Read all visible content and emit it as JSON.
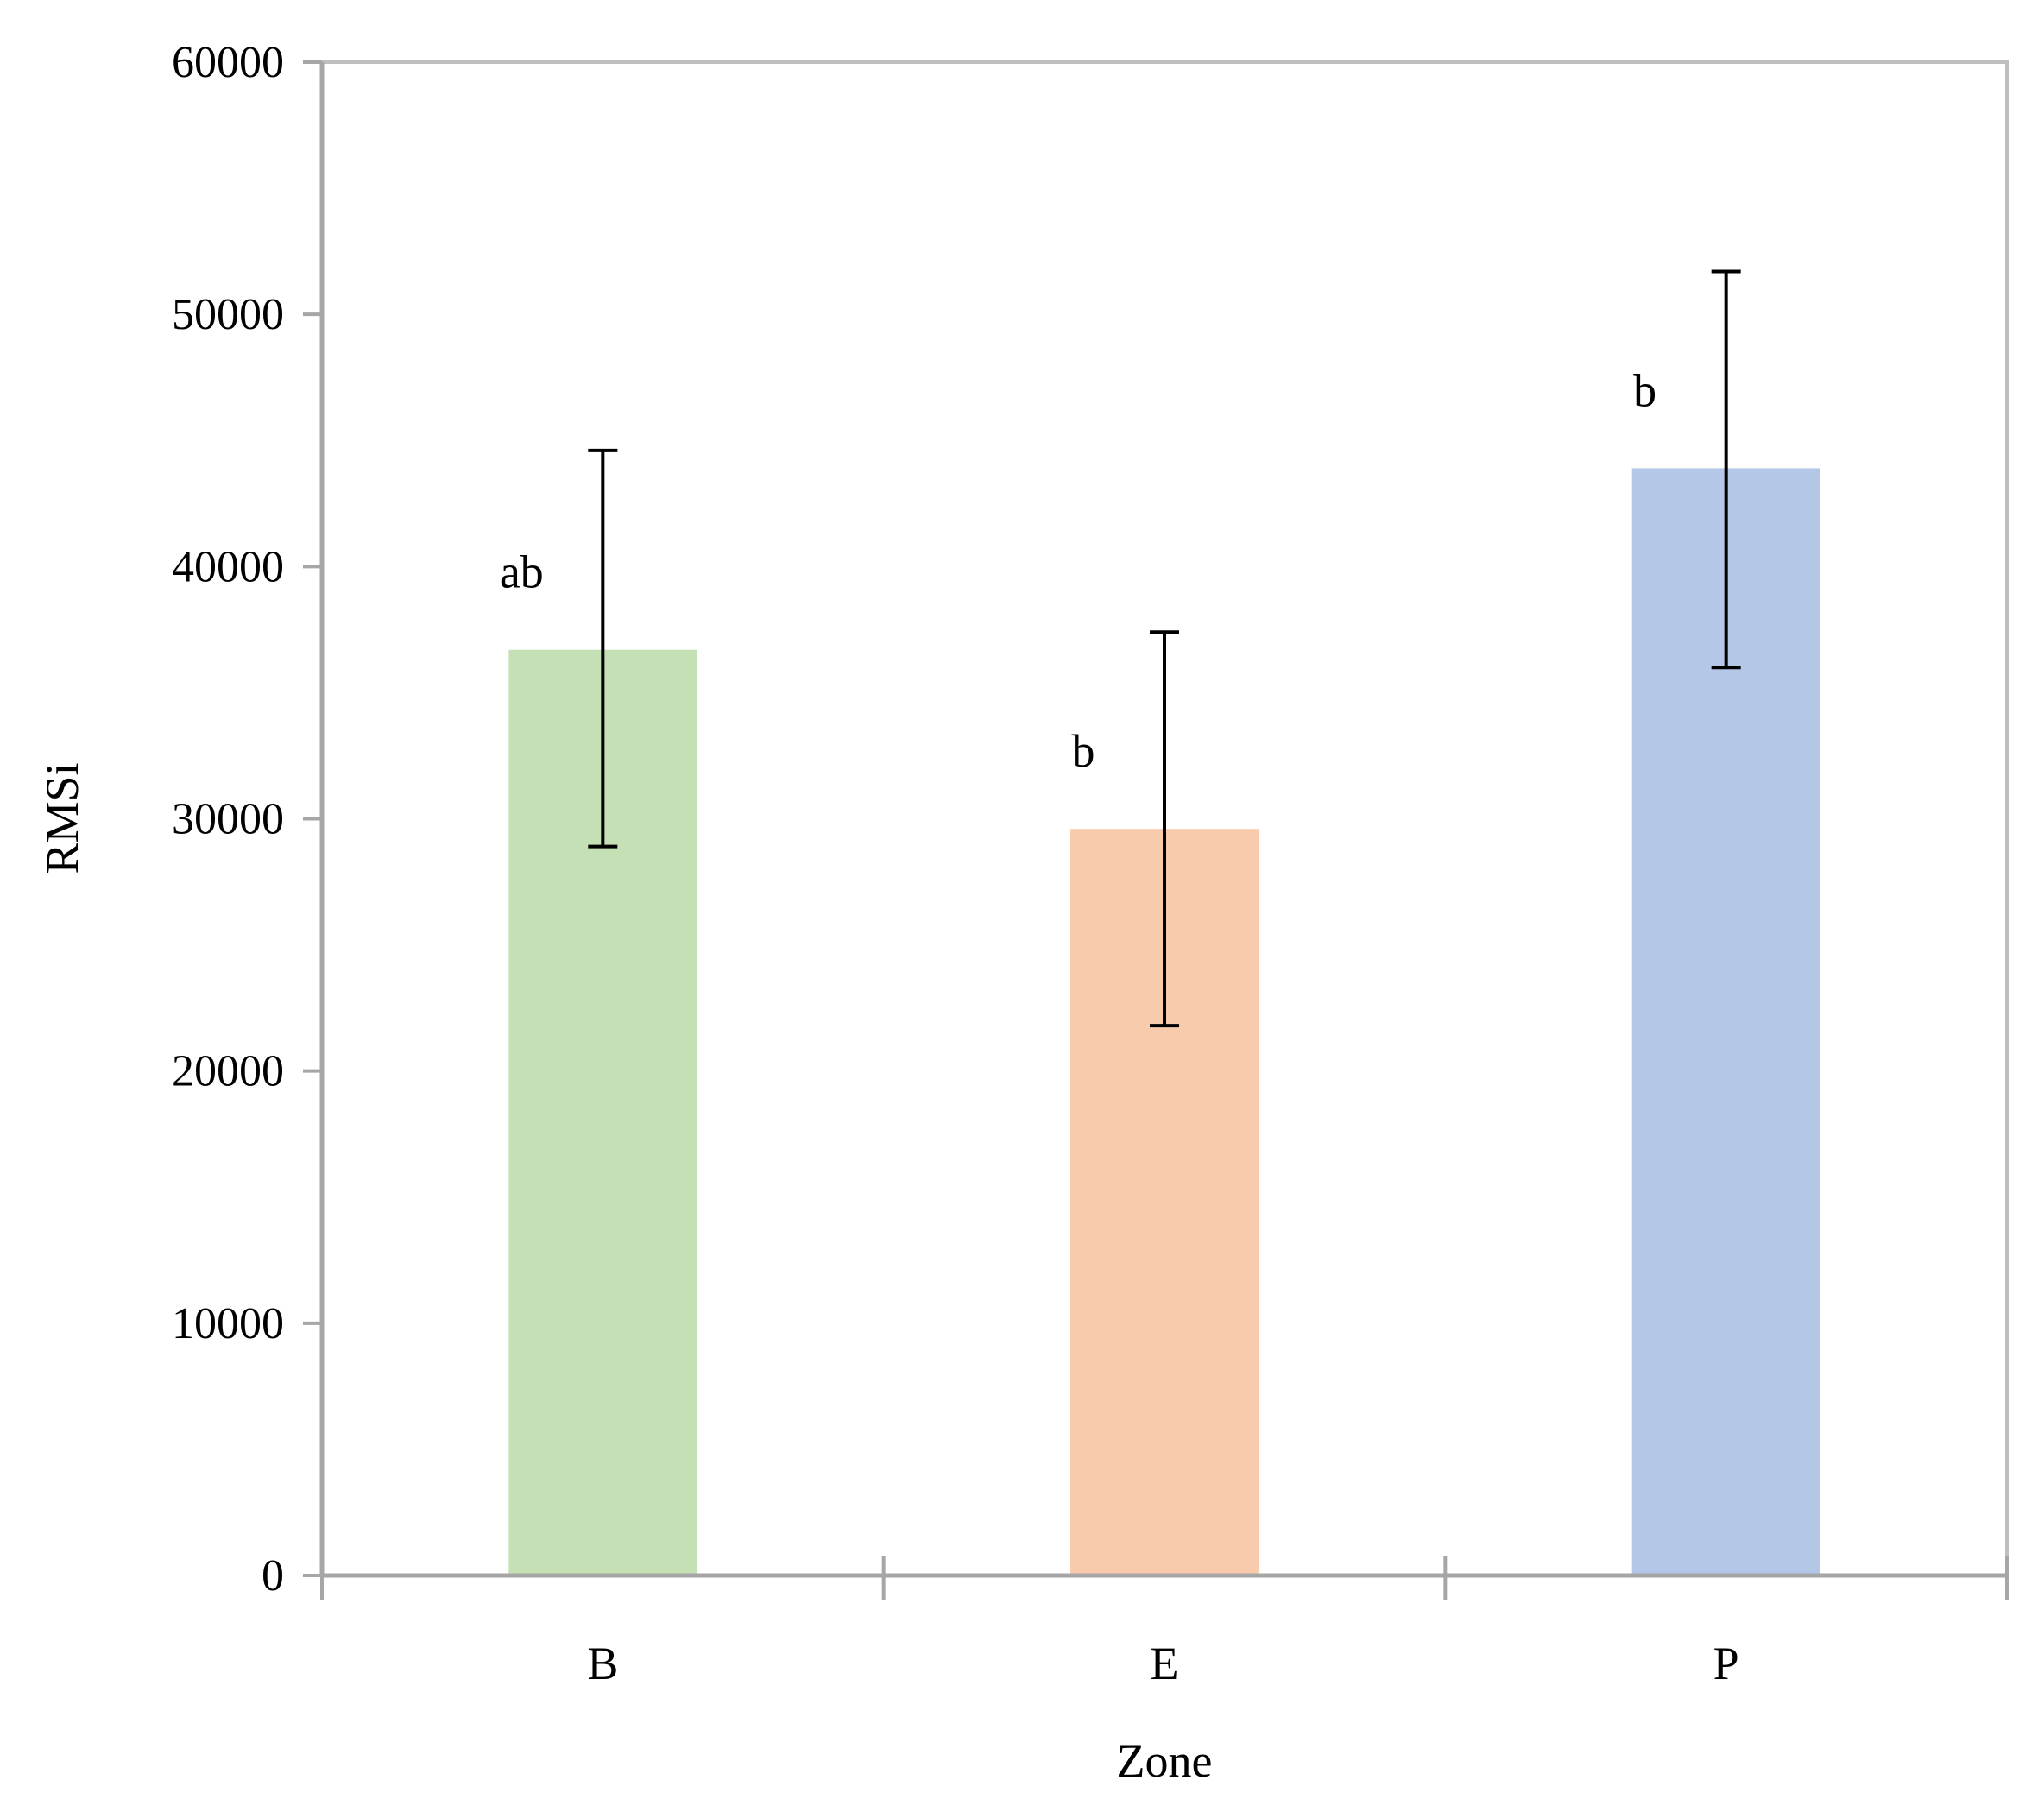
{
  "chart_data": {
    "type": "bar",
    "title": "",
    "xlabel": "Zone",
    "ylabel": "RMSi",
    "categories": [
      "B",
      "E",
      "P"
    ],
    "values": [
      36700,
      29600,
      43900
    ],
    "error_high": [
      44600,
      37400,
      51700
    ],
    "error_low": [
      28900,
      21800,
      36000
    ],
    "significance_labels": [
      "ab",
      "b",
      "b"
    ],
    "bar_colors": [
      "#c5e0b4",
      "#f8cbad",
      "#b4c7e7"
    ],
    "ylim": [
      0,
      60000
    ],
    "yticks": [
      0,
      10000,
      20000,
      30000,
      40000,
      50000,
      60000
    ],
    "ytick_labels": [
      "0",
      "10000",
      "20000",
      "30000",
      "40000",
      "50000",
      "60000"
    ],
    "grid": false,
    "legend": "none",
    "axis_color": "#a6a6a6"
  }
}
